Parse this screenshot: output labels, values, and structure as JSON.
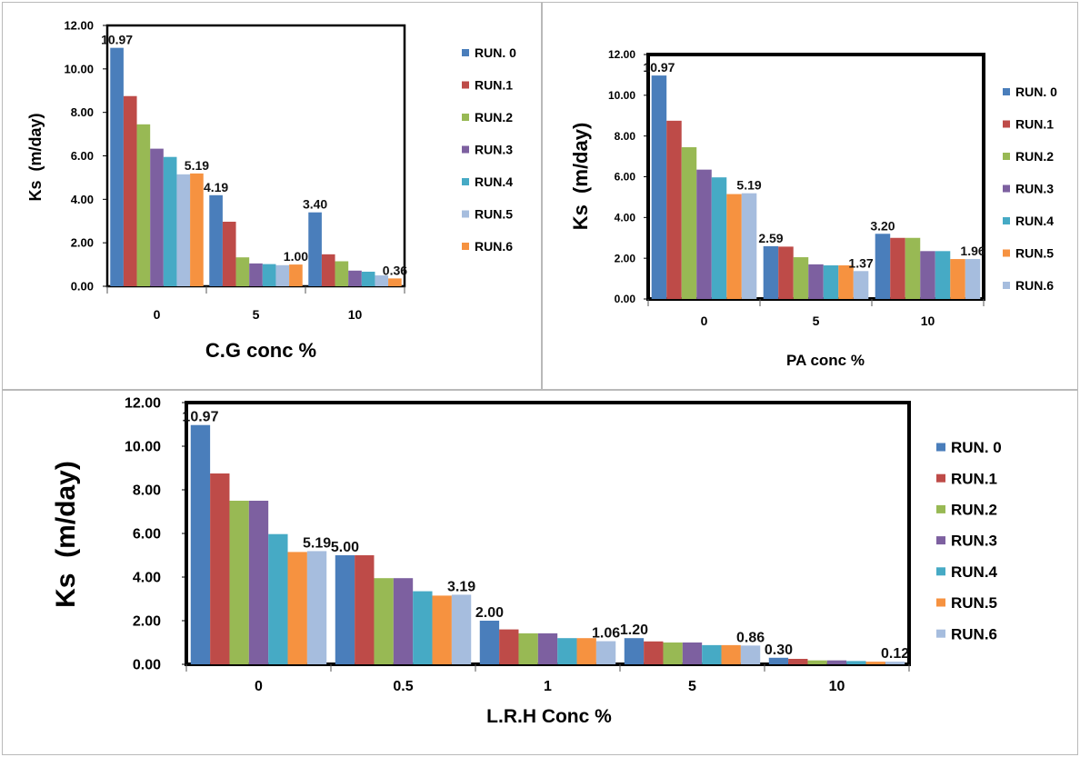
{
  "colors": {
    "run0": "#4A7EBB",
    "run1": "#BE4B48",
    "run2": "#98B954",
    "run3": "#7D60A0",
    "run4": "#46AAC5",
    "orange": "#F69240",
    "lightblue": "#A6BDDE"
  },
  "chart_data": [
    {
      "type": "bar",
      "xlabel": "C.G conc %",
      "ylabel": "Ks  (m/day)",
      "categories": [
        "0",
        "5",
        "10"
      ],
      "ylim": [
        0,
        12
      ],
      "yticks": [
        "0.00",
        "2.00",
        "4.00",
        "6.00",
        "8.00",
        "10.00",
        "12.00"
      ],
      "legend_position": "right",
      "series": [
        {
          "name": "RUN. 0",
          "color": "#4A7EBB",
          "values": [
            10.97,
            4.19,
            3.4
          ]
        },
        {
          "name": "RUN.1",
          "color": "#BE4B48",
          "values": [
            8.75,
            2.97,
            1.47
          ]
        },
        {
          "name": "RUN.2",
          "color": "#98B954",
          "values": [
            7.45,
            1.33,
            1.15
          ]
        },
        {
          "name": "RUN.3",
          "color": "#7D60A0",
          "values": [
            6.33,
            1.05,
            0.72
          ]
        },
        {
          "name": "RUN.4",
          "color": "#46AAC5",
          "values": [
            5.95,
            1.02,
            0.67
          ]
        },
        {
          "name": "RUN.5",
          "color": "#A6BDDE",
          "values": [
            5.15,
            0.97,
            0.5
          ]
        },
        {
          "name": "RUN.6",
          "color": "#F69240",
          "values": [
            5.19,
            1.0,
            0.36
          ]
        }
      ],
      "data_labels": [
        {
          "text": "10.97",
          "series": 0,
          "category": 0
        },
        {
          "text": "5.19",
          "series": 6,
          "category": 0
        },
        {
          "text": "4.19",
          "series": 0,
          "category": 1
        },
        {
          "text": "1.00",
          "series": 6,
          "category": 1
        },
        {
          "text": "3.40",
          "series": 0,
          "category": 2
        },
        {
          "text": "0.36",
          "series": 6,
          "category": 2
        }
      ]
    },
    {
      "type": "bar",
      "xlabel": "PA conc %",
      "ylabel": "Ks  (m/day)",
      "categories": [
        "0",
        "5",
        "10"
      ],
      "ylim": [
        0,
        12
      ],
      "yticks": [
        "0.00",
        "2.00",
        "4.00",
        "6.00",
        "8.00",
        "10.00",
        "12.00"
      ],
      "legend_position": "right",
      "series": [
        {
          "name": "RUN. 0",
          "color": "#4A7EBB",
          "values": [
            10.97,
            2.59,
            3.2
          ]
        },
        {
          "name": "RUN.1",
          "color": "#BE4B48",
          "values": [
            8.75,
            2.57,
            3.0
          ]
        },
        {
          "name": "RUN.2",
          "color": "#98B954",
          "values": [
            7.45,
            2.05,
            3.0
          ]
        },
        {
          "name": "RUN.3",
          "color": "#7D60A0",
          "values": [
            6.35,
            1.7,
            2.35
          ]
        },
        {
          "name": "RUN.4",
          "color": "#46AAC5",
          "values": [
            5.97,
            1.65,
            2.35
          ]
        },
        {
          "name": "RUN.5",
          "color": "#F69240",
          "values": [
            5.15,
            1.65,
            1.96
          ]
        },
        {
          "name": "RUN.6",
          "color": "#A6BDDE",
          "values": [
            5.19,
            1.37,
            1.96
          ]
        }
      ],
      "data_labels": [
        {
          "text": "10.97",
          "series": 0,
          "category": 0
        },
        {
          "text": "5.19",
          "series": 6,
          "category": 0
        },
        {
          "text": "2.59",
          "series": 0,
          "category": 1
        },
        {
          "text": "1.37",
          "series": 6,
          "category": 1
        },
        {
          "text": "3.20",
          "series": 0,
          "category": 2
        },
        {
          "text": "1.96",
          "series": 6,
          "category": 2
        }
      ]
    },
    {
      "type": "bar",
      "xlabel": "L.R.H Conc %",
      "ylabel": "Ks  (m/day)",
      "categories": [
        "0",
        "0.5",
        "1",
        "5",
        "10"
      ],
      "ylim": [
        0,
        12
      ],
      "yticks": [
        "0.00",
        "2.00",
        "4.00",
        "6.00",
        "8.00",
        "10.00",
        "12.00"
      ],
      "legend_position": "right",
      "series": [
        {
          "name": "RUN. 0",
          "color": "#4A7EBB",
          "values": [
            10.97,
            5.0,
            2.0,
            1.2,
            0.3
          ]
        },
        {
          "name": "RUN.1",
          "color": "#BE4B48",
          "values": [
            8.75,
            5.0,
            1.6,
            1.05,
            0.25
          ]
        },
        {
          "name": "RUN.2",
          "color": "#98B954",
          "values": [
            7.5,
            3.95,
            1.42,
            1.0,
            0.18
          ]
        },
        {
          "name": "RUN.3",
          "color": "#7D60A0",
          "values": [
            7.5,
            3.95,
            1.42,
            1.0,
            0.18
          ]
        },
        {
          "name": "RUN.4",
          "color": "#46AAC5",
          "values": [
            5.97,
            3.35,
            1.2,
            0.88,
            0.15
          ]
        },
        {
          "name": "RUN.5",
          "color": "#F69240",
          "values": [
            5.15,
            3.15,
            1.2,
            0.88,
            0.12
          ]
        },
        {
          "name": "RUN.6",
          "color": "#A6BDDE",
          "values": [
            5.19,
            3.19,
            1.06,
            0.86,
            0.12
          ]
        }
      ],
      "data_labels": [
        {
          "text": "10.97",
          "series": 0,
          "category": 0
        },
        {
          "text": "5.19",
          "series": 6,
          "category": 0
        },
        {
          "text": "5.00",
          "series": 0,
          "category": 1
        },
        {
          "text": "3.19",
          "series": 6,
          "category": 1
        },
        {
          "text": "2.00",
          "series": 0,
          "category": 2
        },
        {
          "text": "1.06",
          "series": 6,
          "category": 2
        },
        {
          "text": "1.20",
          "series": 0,
          "category": 3
        },
        {
          "text": "0.86",
          "series": 6,
          "category": 3
        },
        {
          "text": "0.30",
          "series": 0,
          "category": 4
        },
        {
          "text": "0.12",
          "series": 6,
          "category": 4
        }
      ]
    }
  ]
}
